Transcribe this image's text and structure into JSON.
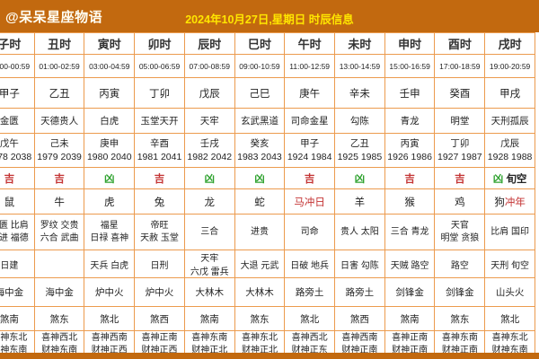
{
  "header": {
    "brand": "@呆呆星座物语",
    "title": "2024年10月27日,星期日 时辰信息"
  },
  "colors": {
    "header_bg": "#c2690f",
    "border": "#ec9b4e",
    "red": "#c43434",
    "green": "#2ea22e",
    "title_yellow": "#ffe600",
    "luck": {
      "吉": "#c43434",
      "凶": "#2ea22e"
    }
  },
  "columns": [
    {
      "name": "子时",
      "time": "23:00-00:59",
      "ganzhi": "甲子",
      "huangdao": "金匮",
      "chong": "戊午",
      "chong_years": "1978 2038",
      "luck": "吉",
      "luck_extra": "",
      "animal": "鼠",
      "animal_red": false,
      "animal_note": "",
      "jishen": [
        "金匮 比肩",
        "大进 福德"
      ],
      "xiongshen": [
        "日建"
      ],
      "nayin": "海中金",
      "sha": "煞南",
      "xishen": "喜神东北",
      "caishen": "财神东南"
    },
    {
      "name": "丑时",
      "time": "01:00-02:59",
      "ganzhi": "乙丑",
      "huangdao": "天德贵人",
      "chong": "己未",
      "chong_years": "1979 2039",
      "luck": "吉",
      "luck_extra": "",
      "animal": "牛",
      "animal_red": false,
      "animal_note": "",
      "jishen": [
        "罗纹 交贵",
        "六合 武曲"
      ],
      "xiongshen": [
        ""
      ],
      "nayin": "海中金",
      "sha": "煞东",
      "xishen": "喜神西北",
      "caishen": "财神东南"
    },
    {
      "name": "寅时",
      "time": "03:00-04:59",
      "ganzhi": "丙寅",
      "huangdao": "白虎",
      "chong": "庚申",
      "chong_years": "1980 2040",
      "luck": "凶",
      "luck_extra": "",
      "animal": "虎",
      "animal_red": false,
      "animal_note": "",
      "jishen": [
        "福星",
        "日禄 喜神"
      ],
      "xiongshen": [
        "天兵 白虎"
      ],
      "nayin": "炉中火",
      "sha": "煞北",
      "xishen": "喜神西南",
      "caishen": "财神正西"
    },
    {
      "name": "卯时",
      "time": "05:00-06:59",
      "ganzhi": "丁卯",
      "huangdao": "玉堂天开",
      "chong": "辛酉",
      "chong_years": "1981 2041",
      "luck": "吉",
      "luck_extra": "",
      "animal": "兔",
      "animal_red": false,
      "animal_note": "",
      "jishen": [
        "帝旺",
        "天赦 玉堂"
      ],
      "xiongshen": [
        "日刑"
      ],
      "nayin": "炉中火",
      "sha": "煞西",
      "xishen": "喜神正南",
      "caishen": "财神正西"
    },
    {
      "name": "辰时",
      "time": "07:00-08:59",
      "ganzhi": "戊辰",
      "huangdao": "天牢",
      "chong": "壬戌",
      "chong_years": "1982 2042",
      "luck": "凶",
      "luck_extra": "",
      "animal": "龙",
      "animal_red": false,
      "animal_note": "",
      "jishen": [
        "三合"
      ],
      "xiongshen": [
        "天牢",
        "六戊 雷兵"
      ],
      "nayin": "大林木",
      "sha": "煞南",
      "xishen": "喜神东南",
      "caishen": "财神正北"
    },
    {
      "name": "巳时",
      "time": "09:00-10:59",
      "ganzhi": "己巳",
      "huangdao": "玄武黑道",
      "chong": "癸亥",
      "chong_years": "1983 2043",
      "luck": "凶",
      "luck_extra": "",
      "animal": "蛇",
      "animal_red": false,
      "animal_note": "",
      "jishen": [
        "进贵"
      ],
      "xiongshen": [
        "大退 元武"
      ],
      "nayin": "大林木",
      "sha": "煞东",
      "xishen": "喜神东北",
      "caishen": "财神正北"
    },
    {
      "name": "午时",
      "time": "11:00-12:59",
      "ganzhi": "庚午",
      "huangdao": "司命金星",
      "chong": "甲子",
      "chong_years": "1924 1984",
      "luck": "吉",
      "luck_extra": "",
      "animal": "马",
      "animal_red": true,
      "animal_note": "冲日",
      "jishen": [
        "司命"
      ],
      "xiongshen": [
        "日破 地兵"
      ],
      "nayin": "路旁土",
      "sha": "煞北",
      "xishen": "喜神西北",
      "caishen": "财神正东"
    },
    {
      "name": "未时",
      "time": "13:00-14:59",
      "ganzhi": "辛未",
      "huangdao": "勾陈",
      "chong": "乙丑",
      "chong_years": "1925 1985",
      "luck": "凶",
      "luck_extra": "",
      "animal": "羊",
      "animal_red": false,
      "animal_note": "",
      "jishen": [
        "贵人 太阳"
      ],
      "xiongshen": [
        "日害 勾陈"
      ],
      "nayin": "路旁土",
      "sha": "煞西",
      "xishen": "喜神西南",
      "caishen": "财神正南"
    },
    {
      "name": "申时",
      "time": "15:00-16:59",
      "ganzhi": "壬申",
      "huangdao": "青龙",
      "chong": "丙寅",
      "chong_years": "1926 1986",
      "luck": "吉",
      "luck_extra": "",
      "animal": "猴",
      "animal_red": false,
      "animal_note": "",
      "jishen": [
        "三合 青龙"
      ],
      "xiongshen": [
        "天贼 路空"
      ],
      "nayin": "剑锋金",
      "sha": "煞南",
      "xishen": "喜神正南",
      "caishen": "财神正南"
    },
    {
      "name": "酉时",
      "time": "17:00-18:59",
      "ganzhi": "癸酉",
      "huangdao": "明堂",
      "chong": "丁卯",
      "chong_years": "1927 1987",
      "luck": "吉",
      "luck_extra": "",
      "animal": "鸡",
      "animal_red": false,
      "animal_note": "",
      "jishen": [
        "天官",
        "明堂 贪狼"
      ],
      "xiongshen": [
        "路空"
      ],
      "nayin": "剑锋金",
      "sha": "煞东",
      "xishen": "喜神东南",
      "caishen": "财神正南"
    },
    {
      "name": "戌时",
      "time": "19:00-20:59",
      "ganzhi": "甲戌",
      "huangdao": "天刑孤辰",
      "chong": "戊辰",
      "chong_years": "1928 1988",
      "luck": "凶",
      "luck_extra": "旬空",
      "animal": "狗",
      "animal_red": false,
      "animal_note": "冲年",
      "jishen": [
        "比肩 国印"
      ],
      "xiongshen": [
        "天刑 旬空"
      ],
      "nayin": "山头火",
      "sha": "煞北",
      "xishen": "喜神东北",
      "caishen": "财神东南"
    }
  ]
}
